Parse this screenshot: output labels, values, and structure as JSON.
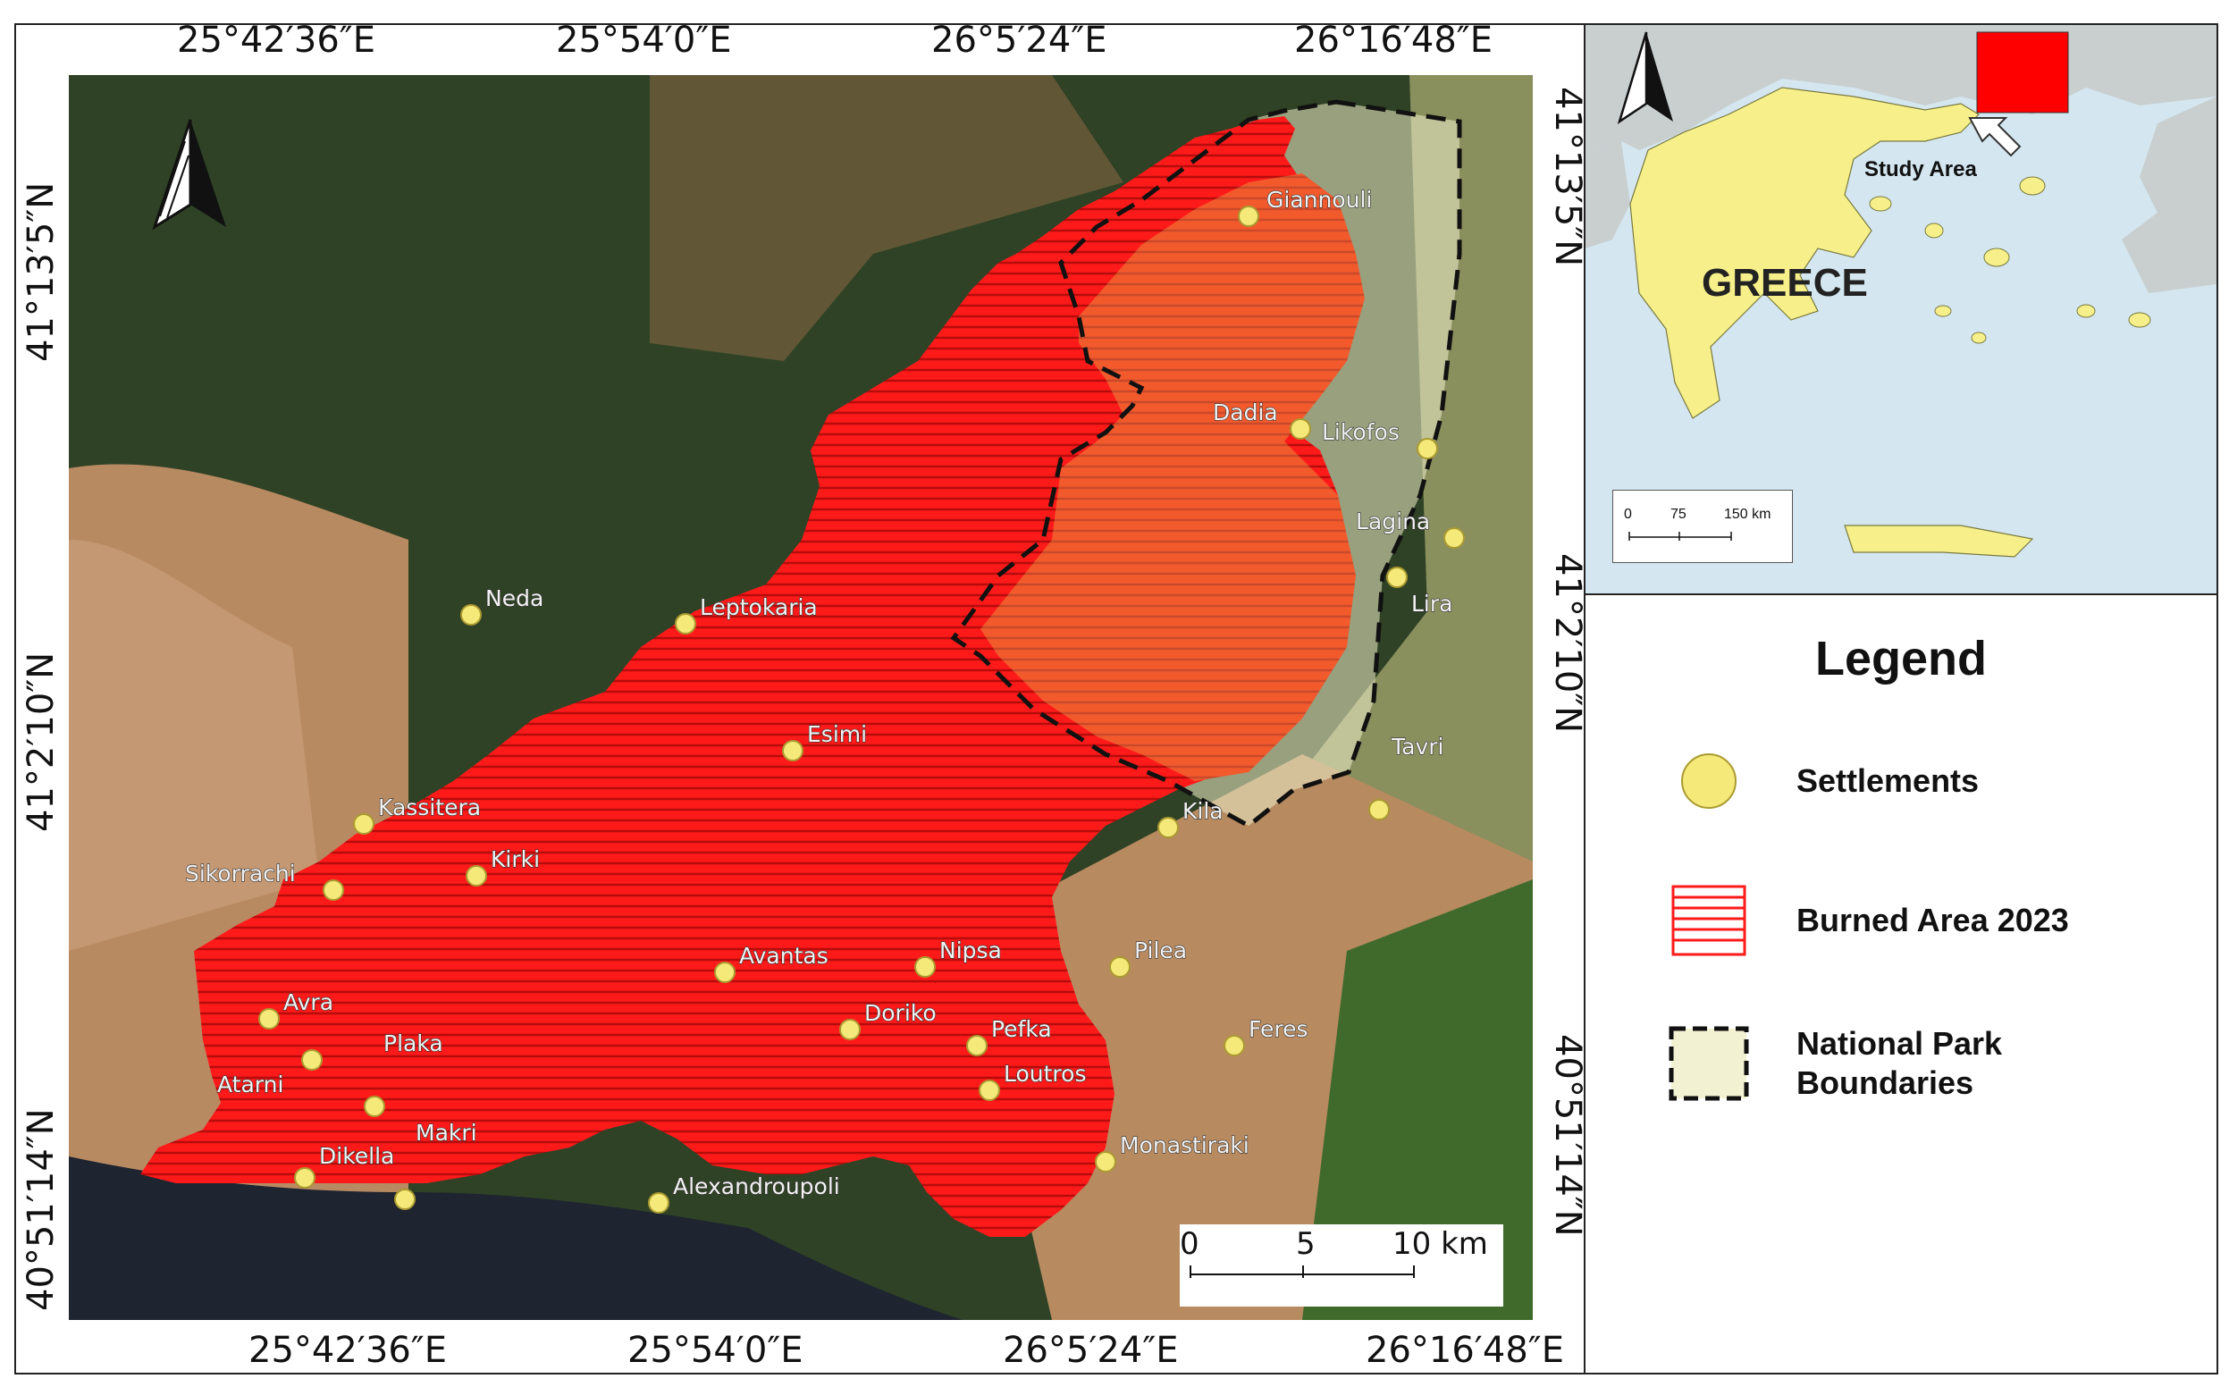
{
  "map": {
    "top_coords": [
      "25°42′36″E",
      "25°54′0″E",
      "26°5′24″E",
      "26°16′48″E"
    ],
    "bottom_coords": [
      "25°42′36″E",
      "25°54′0″E",
      "26°5′24″E",
      "26°16′48″E"
    ],
    "left_coords": [
      "41°13′5″N",
      "41°2′10″N",
      "40°51′14″N"
    ],
    "right_coords": [
      "41°13′5″N",
      "41°2′10″N",
      "40°51′14″N"
    ],
    "settlements": [
      "Giannouli",
      "Dadia",
      "Likofos",
      "Lagina",
      "Lira",
      "Tavri",
      "Kila",
      "Neda",
      "Leptokaria",
      "Esimi",
      "Kassitera",
      "Kirki",
      "Sikorrachi",
      "Avra",
      "Plaka",
      "Atarni",
      "Makri",
      "Dikella",
      "Alexandroupoli",
      "Avantas",
      "Nipsa",
      "Doriko",
      "Pefka",
      "Loutros",
      "Pilea",
      "Feres",
      "Monastiraki"
    ],
    "scale": {
      "labels": [
        "0",
        "5",
        "10 km"
      ]
    },
    "colors": {
      "burned": "#ff1a1a",
      "park_fill": "#f0efcf",
      "settlement": "#f5e97a",
      "sea": "#1e2430"
    }
  },
  "inset": {
    "country_label": "GREECE",
    "study_area_label": "Study Area",
    "scale_labels": [
      "0",
      "75",
      "150 km"
    ],
    "colors": {
      "land": "#f7f08a",
      "neighbors": "#c9cfcf",
      "sea": "#d4e6ef",
      "study_box": "#ff0000"
    }
  },
  "legend": {
    "title": "Legend",
    "items": [
      {
        "label": "Settlements",
        "symbol": "circle"
      },
      {
        "label": "Burned Area 2023",
        "symbol": "hatched-red"
      },
      {
        "label": "National Park\nBoundaries",
        "symbol": "dashed-box"
      }
    ]
  }
}
